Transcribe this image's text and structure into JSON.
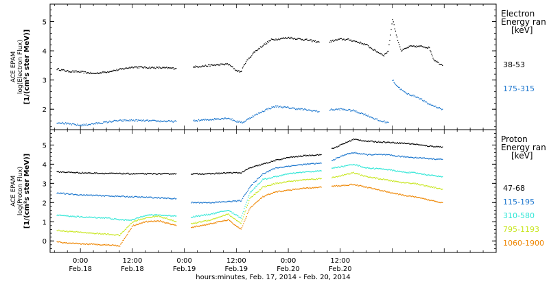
{
  "chart_data": [
    {
      "type": "scatter",
      "panel": "electron",
      "ylabel_lines": [
        "ACE EPAM",
        "log(Electron Flux)",
        "[1/(cm²s ster MeV)]"
      ],
      "legend_title_lines": [
        "Electron",
        "Energy ran",
        "[keV]"
      ],
      "ylim": [
        1.3,
        5.6
      ],
      "yticks": [
        "2",
        "3",
        "4",
        "5"
      ],
      "grid": false,
      "legend_placement": "right",
      "series": [
        {
          "name": "38-53",
          "color": "#000000",
          "segments": [
            [
              [
                -5.5,
                3.38
              ],
              [
                -3,
                3.3
              ],
              [
                0,
                3.28
              ],
              [
                3,
                3.22
              ],
              [
                6,
                3.28
              ],
              [
                9,
                3.36
              ],
              [
                12,
                3.45
              ],
              [
                15,
                3.43
              ],
              [
                18,
                3.42
              ],
              [
                22,
                3.4
              ]
            ],
            [
              [
                26,
                3.45
              ],
              [
                30,
                3.5
              ],
              [
                34,
                3.55
              ],
              [
                36,
                3.32
              ],
              [
                37,
                3.28
              ],
              [
                38,
                3.6
              ],
              [
                40,
                3.95
              ],
              [
                42,
                4.18
              ],
              [
                44,
                4.38
              ],
              [
                48,
                4.45
              ],
              [
                52,
                4.38
              ],
              [
                55,
                4.3
              ]
            ],
            [
              [
                57.5,
                4.32
              ],
              [
                60,
                4.4
              ],
              [
                62,
                4.38
              ],
              [
                64,
                4.3
              ],
              [
                66,
                4.2
              ],
              [
                68,
                4.0
              ],
              [
                70,
                3.85
              ],
              [
                71,
                4.0
              ],
              [
                72,
                5.1
              ],
              [
                73,
                4.45
              ],
              [
                74,
                4.0
              ],
              [
                76,
                4.15
              ],
              [
                79,
                4.15
              ],
              [
                80.5,
                4.1
              ],
              [
                81.5,
                3.7
              ],
              [
                83.5,
                3.5
              ]
            ]
          ]
        },
        {
          "name": "175-315",
          "color": "#1874cd",
          "segments": [
            [
              [
                -5.5,
                1.55
              ],
              [
                -3,
                1.5
              ],
              [
                0,
                1.45
              ],
              [
                4,
                1.52
              ],
              [
                8,
                1.6
              ],
              [
                12,
                1.62
              ],
              [
                16,
                1.6
              ],
              [
                22,
                1.58
              ]
            ],
            [
              [
                26,
                1.6
              ],
              [
                30,
                1.65
              ],
              [
                34,
                1.7
              ],
              [
                36,
                1.58
              ],
              [
                37.5,
                1.55
              ],
              [
                39,
                1.7
              ],
              [
                41,
                1.85
              ],
              [
                43,
                2.0
              ],
              [
                45,
                2.1
              ],
              [
                48,
                2.05
              ],
              [
                52,
                1.98
              ],
              [
                55,
                1.92
              ]
            ],
            [
              [
                57.5,
                1.98
              ],
              [
                60,
                2.0
              ],
              [
                63,
                1.95
              ],
              [
                66,
                1.8
              ],
              [
                69,
                1.6
              ],
              [
                71,
                1.55
              ]
            ],
            [
              [
                72,
                3.0
              ],
              [
                73,
                2.8
              ],
              [
                75,
                2.55
              ],
              [
                78,
                2.4
              ],
              [
                80,
                2.2
              ],
              [
                83.5,
                2.0
              ]
            ]
          ]
        }
      ]
    },
    {
      "type": "scatter",
      "panel": "proton",
      "ylabel_lines": [
        "ACE EPAM",
        "log(Proton Flux)",
        "[1/(cm²s ster MeV)]"
      ],
      "legend_title_lines": [
        "Proton",
        "Energy ran",
        "[keV]"
      ],
      "ylim": [
        -0.6,
        5.8
      ],
      "yticks": [
        "0",
        "1",
        "2",
        "3",
        "4",
        "5"
      ],
      "grid": false,
      "legend_placement": "right",
      "series": [
        {
          "name": "47-68",
          "color": "#000000",
          "segments": [
            [
              [
                -5.5,
                3.6
              ],
              [
                -3,
                3.58
              ],
              [
                0,
                3.55
              ],
              [
                6,
                3.52
              ],
              [
                12,
                3.5
              ],
              [
                18,
                3.5
              ],
              [
                22,
                3.5
              ]
            ],
            [
              [
                25.5,
                3.5
              ],
              [
                30,
                3.5
              ],
              [
                34,
                3.55
              ],
              [
                37,
                3.55
              ],
              [
                39,
                3.8
              ],
              [
                42,
                4.0
              ],
              [
                45,
                4.2
              ],
              [
                48,
                4.35
              ],
              [
                52,
                4.45
              ],
              [
                55.5,
                4.5
              ]
            ],
            [
              [
                58,
                4.8
              ],
              [
                61,
                5.1
              ],
              [
                63,
                5.3
              ],
              [
                66,
                5.2
              ],
              [
                70,
                5.15
              ],
              [
                74,
                5.1
              ],
              [
                77,
                5.05
              ],
              [
                80,
                4.95
              ],
              [
                83.5,
                4.9
              ]
            ]
          ]
        },
        {
          "name": "115-195",
          "color": "#1874cd",
          "segments": [
            [
              [
                -5.5,
                2.5
              ],
              [
                -3,
                2.45
              ],
              [
                0,
                2.4
              ],
              [
                6,
                2.35
              ],
              [
                12,
                2.3
              ],
              [
                18,
                2.25
              ],
              [
                22,
                2.2
              ]
            ],
            [
              [
                25.5,
                2.0
              ],
              [
                30,
                2.0
              ],
              [
                34,
                2.05
              ],
              [
                37,
                2.1
              ],
              [
                39,
                2.8
              ],
              [
                42,
                3.5
              ],
              [
                45,
                3.8
              ],
              [
                48,
                3.9
              ],
              [
                52,
                4.0
              ],
              [
                55.5,
                4.05
              ]
            ],
            [
              [
                58,
                4.2
              ],
              [
                61,
                4.5
              ],
              [
                63,
                4.6
              ],
              [
                66,
                4.5
              ],
              [
                70,
                4.5
              ],
              [
                74,
                4.4
              ],
              [
                77,
                4.35
              ],
              [
                80,
                4.3
              ],
              [
                83.5,
                4.25
              ]
            ]
          ]
        },
        {
          "name": "310-580",
          "color": "#2ee6d6",
          "segments": [
            [
              [
                -5.5,
                1.35
              ],
              [
                -3,
                1.3
              ],
              [
                0,
                1.25
              ],
              [
                6,
                1.2
              ],
              [
                9,
                1.1
              ],
              [
                12,
                1.1
              ],
              [
                15,
                1.35
              ],
              [
                18,
                1.35
              ],
              [
                22,
                1.3
              ]
            ],
            [
              [
                25.5,
                1.25
              ],
              [
                30,
                1.4
              ],
              [
                34,
                1.6
              ],
              [
                37,
                1.2
              ],
              [
                39,
                2.5
              ],
              [
                42,
                3.2
              ],
              [
                45,
                3.35
              ],
              [
                48,
                3.5
              ],
              [
                52,
                3.6
              ],
              [
                55.5,
                3.65
              ]
            ],
            [
              [
                58,
                3.8
              ],
              [
                61,
                3.9
              ],
              [
                63,
                4.0
              ],
              [
                66,
                3.8
              ],
              [
                70,
                3.75
              ],
              [
                74,
                3.6
              ],
              [
                77,
                3.55
              ],
              [
                80,
                3.45
              ],
              [
                83.5,
                3.35
              ]
            ]
          ]
        },
        {
          "name": "795-1193",
          "color": "#c8e61e",
          "segments": [
            [
              [
                -5.5,
                0.55
              ],
              [
                -3,
                0.5
              ],
              [
                0,
                0.45
              ],
              [
                6,
                0.35
              ],
              [
                9,
                0.3
              ],
              [
                12,
                1.0
              ],
              [
                15,
                1.2
              ],
              [
                18,
                1.3
              ],
              [
                22,
                1.0
              ]
            ],
            [
              [
                25.5,
                0.9
              ],
              [
                30,
                1.1
              ],
              [
                34,
                1.4
              ],
              [
                37,
                0.9
              ],
              [
                39,
                2.2
              ],
              [
                42,
                2.8
              ],
              [
                45,
                3.0
              ],
              [
                48,
                3.1
              ],
              [
                52,
                3.2
              ],
              [
                55.5,
                3.25
              ]
            ],
            [
              [
                58,
                3.3
              ],
              [
                61,
                3.45
              ],
              [
                63,
                3.55
              ],
              [
                66,
                3.35
              ],
              [
                70,
                3.2
              ],
              [
                74,
                3.05
              ],
              [
                77,
                3.0
              ],
              [
                80,
                2.85
              ],
              [
                83.5,
                2.7
              ]
            ]
          ]
        },
        {
          "name": "1060-1900",
          "color": "#ee8500",
          "segments": [
            [
              [
                -5.5,
                -0.05
              ],
              [
                -3,
                -0.12
              ],
              [
                0,
                -0.15
              ],
              [
                6,
                -0.2
              ],
              [
                9,
                -0.25
              ],
              [
                12,
                0.8
              ],
              [
                15,
                1.0
              ],
              [
                18,
                1.05
              ],
              [
                22,
                0.8
              ]
            ],
            [
              [
                25.5,
                0.7
              ],
              [
                30,
                0.9
              ],
              [
                34,
                1.1
              ],
              [
                37,
                0.6
              ],
              [
                39,
                1.7
              ],
              [
                42,
                2.3
              ],
              [
                45,
                2.55
              ],
              [
                48,
                2.65
              ],
              [
                52,
                2.75
              ],
              [
                55.5,
                2.8
              ]
            ],
            [
              [
                58,
                2.85
              ],
              [
                61,
                2.9
              ],
              [
                63,
                2.95
              ],
              [
                66,
                2.8
              ],
              [
                70,
                2.6
              ],
              [
                74,
                2.4
              ],
              [
                77,
                2.3
              ],
              [
                80,
                2.15
              ],
              [
                83.5,
                2.0
              ]
            ]
          ]
        }
      ]
    }
  ],
  "x_axis": {
    "xlim": [
      -7,
      96
    ],
    "ticks": [
      {
        "hour": 0,
        "time": "0:00",
        "date": "Feb.18"
      },
      {
        "hour": 12,
        "time": "12:00",
        "date": "Feb.18"
      },
      {
        "hour": 24,
        "time": "0:00",
        "date": "Feb.19"
      },
      {
        "hour": 36,
        "time": "12:00",
        "date": "Feb.19"
      },
      {
        "hour": 48,
        "time": "0:00",
        "date": "Feb.20"
      },
      {
        "hour": 60,
        "time": "12:00",
        "date": "Feb.20"
      }
    ],
    "xlabel": "hours:minutes, Feb. 17, 2014 - Feb. 20, 2014"
  }
}
